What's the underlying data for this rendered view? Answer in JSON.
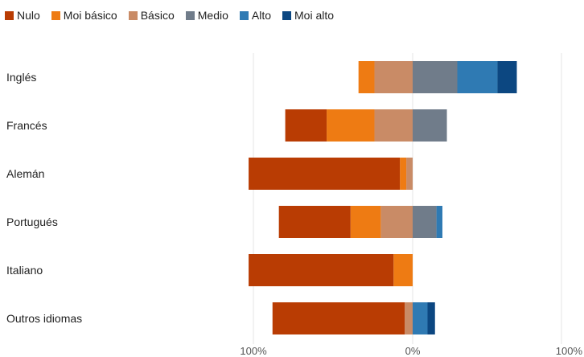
{
  "chart_data": {
    "type": "bar",
    "orientation": "horizontal",
    "stacking": "diverging",
    "legend_position": "top-left",
    "grid": true,
    "categories": [
      "Inglés",
      "Francés",
      "Alemán",
      "Portugués",
      "Italiano",
      "Outros idiomas"
    ],
    "series": [
      {
        "name": "Nulo",
        "side": "negative",
        "color": "#B93C03",
        "values": [
          0,
          26,
          95,
          45,
          91,
          83
        ]
      },
      {
        "name": "Moi básico",
        "side": "negative",
        "color": "#EE7B13",
        "values": [
          10,
          30,
          4,
          19,
          12,
          0
        ]
      },
      {
        "name": "Básico",
        "side": "negative",
        "color": "#C98B66",
        "values": [
          24,
          24,
          4,
          20,
          0,
          5
        ]
      },
      {
        "name": "Medio",
        "side": "positive",
        "color": "#707C8A",
        "values": [
          30,
          23,
          0,
          16,
          0,
          0
        ]
      },
      {
        "name": "Alto",
        "side": "positive",
        "color": "#2F7AB3",
        "values": [
          27,
          0,
          0,
          4,
          0,
          10
        ]
      },
      {
        "name": "Moi alto",
        "side": "positive",
        "color": "#0C4781",
        "values": [
          13,
          0,
          0,
          0,
          0,
          5
        ]
      }
    ],
    "xlim": [
      -100,
      100
    ],
    "x_ticks": [
      {
        "value": -100,
        "label": "100%"
      },
      {
        "value": 0,
        "label": "0%"
      },
      {
        "value": 100,
        "label": "100%"
      }
    ],
    "title": "",
    "xlabel": "",
    "ylabel": ""
  }
}
